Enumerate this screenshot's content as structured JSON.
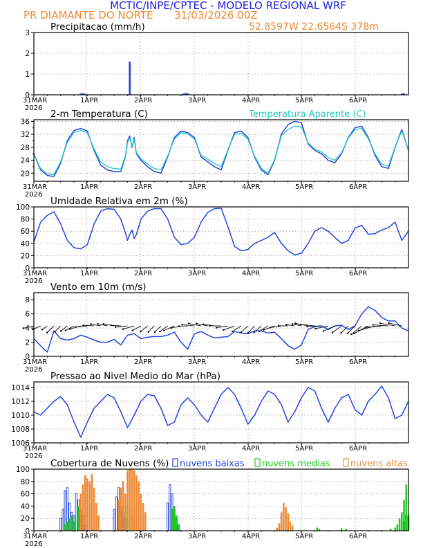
{
  "header": {
    "title": "MCTIC/INPE/CPTEC - MODELO REGIONAL WRF",
    "station": "PR DIAMANTE DO NORTE",
    "run": "31/03/2026 00Z",
    "coords": "52.8597W 22.6564S 378m"
  },
  "colors": {
    "title": "#2222dd",
    "station": "#ee8833",
    "line": "#2244dd",
    "apparent": "#22c8c0",
    "green": "#22cc22",
    "orange": "#ee8833",
    "grid": "#999999"
  },
  "x_axis": {
    "first_label": "31MAR",
    "year": "2026",
    "ticks": [
      "1APR",
      "2APR",
      "3APR",
      "4APR",
      "5APR",
      "6APR"
    ],
    "hours_total": 168
  },
  "chart_data": [
    {
      "id": "precip",
      "type": "bar",
      "title": "Precipitacao (mm/h)",
      "ylim": [
        0,
        3
      ],
      "yticks": [
        "0",
        "1",
        "2",
        "3"
      ],
      "series": [
        {
          "name": "Precipitacao",
          "color": "#2244dd",
          "points": [
            [
              21,
              0.06
            ],
            [
              22,
              0.08
            ],
            [
              23,
              0.05
            ],
            [
              43,
              1.6
            ],
            [
              67,
              0.06
            ],
            [
              68,
              0.09
            ],
            [
              69,
              0.07
            ],
            [
              165,
              0.06
            ],
            [
              166,
              0.08
            ]
          ]
        }
      ]
    },
    {
      "id": "temp",
      "type": "line",
      "title": "2-m Temperatura (C)",
      "legend": "Temperatura Aparente (C)",
      "ylim": [
        17.5,
        36.5
      ],
      "yticks": [
        "20",
        "24",
        "28",
        "32",
        "36"
      ],
      "series": [
        {
          "name": "2-m Temperatura",
          "color": "#2244dd",
          "x": [
            0,
            3,
            6,
            9,
            12,
            15,
            18,
            21,
            24,
            27,
            30,
            33,
            36,
            39,
            41,
            42,
            43,
            44,
            45,
            46,
            48,
            51,
            54,
            57,
            60,
            63,
            66,
            69,
            72,
            75,
            78,
            81,
            84,
            87,
            90,
            93,
            96,
            99,
            102,
            105,
            108,
            111,
            114,
            117,
            120,
            123,
            126,
            129,
            132,
            135,
            138,
            141,
            144,
            147,
            150,
            153,
            156,
            159,
            162,
            165,
            168
          ],
          "y": [
            26,
            21,
            19.3,
            19,
            23,
            30,
            33.2,
            33.8,
            33,
            27,
            22.5,
            21,
            20.5,
            20.5,
            25,
            30,
            31.5,
            28,
            31,
            26,
            24,
            22,
            20.5,
            20,
            25,
            31,
            33,
            32.5,
            31,
            25,
            23.5,
            22,
            21,
            27,
            32.5,
            33,
            31,
            25,
            21,
            19.5,
            24,
            32,
            35,
            36,
            35.5,
            29,
            27,
            26,
            24,
            23.2,
            26,
            31,
            34,
            34.5,
            31,
            25.5,
            22,
            21.5,
            28,
            33.5,
            27
          ]
        },
        {
          "name": "Temperatura Aparente",
          "color": "#22c8c0",
          "x": [
            0,
            3,
            6,
            9,
            12,
            15,
            18,
            21,
            24,
            27,
            30,
            33,
            36,
            39,
            41,
            42,
            43,
            44,
            45,
            46,
            48,
            51,
            54,
            57,
            60,
            63,
            66,
            69,
            72,
            75,
            78,
            81,
            84,
            87,
            90,
            93,
            96,
            99,
            102,
            105,
            108,
            111,
            114,
            117,
            120,
            123,
            126,
            129,
            132,
            135,
            138,
            141,
            144,
            147,
            150,
            153,
            156,
            159,
            162,
            165,
            168
          ],
          "y": [
            25.8,
            21.5,
            19.8,
            19.6,
            23.5,
            29.5,
            32.6,
            33.2,
            32.5,
            27.5,
            23.5,
            22,
            21.4,
            21.3,
            25.2,
            29.5,
            31,
            28.2,
            30.5,
            26.3,
            24.5,
            22.8,
            21.5,
            21,
            25.3,
            30.5,
            32.5,
            32.2,
            30.5,
            25.5,
            24.3,
            23,
            22,
            27.2,
            32,
            32.3,
            30.5,
            25.3,
            21.5,
            20,
            24.3,
            31.5,
            33.5,
            34.5,
            34.3,
            29.3,
            27.4,
            26.6,
            24.8,
            24,
            26.3,
            30.8,
            33.4,
            33.8,
            30.6,
            26,
            22.8,
            22.2,
            28.2,
            33,
            27.3
          ]
        }
      ]
    },
    {
      "id": "rh",
      "type": "line",
      "title": "Umidade Relativa em 2m (%)",
      "ylim": [
        0,
        100
      ],
      "yticks": [
        "0",
        "20",
        "40",
        "60",
        "80",
        "100"
      ],
      "series": [
        {
          "name": "Umidade Relativa",
          "color": "#2244dd",
          "x": [
            0,
            3,
            6,
            9,
            12,
            15,
            18,
            21,
            24,
            27,
            30,
            33,
            36,
            39,
            41,
            42,
            43,
            44,
            45,
            46,
            48,
            51,
            54,
            57,
            60,
            63,
            66,
            69,
            72,
            75,
            78,
            81,
            84,
            87,
            90,
            93,
            96,
            99,
            102,
            105,
            108,
            111,
            114,
            117,
            120,
            123,
            126,
            129,
            132,
            135,
            138,
            141,
            144,
            147,
            150,
            153,
            156,
            159,
            162,
            165,
            168
          ],
          "y": [
            42,
            75,
            86,
            92,
            72,
            45,
            33,
            31,
            38,
            72,
            93,
            97,
            96,
            80,
            58,
            45,
            55,
            62,
            48,
            55,
            80,
            93,
            97,
            97,
            80,
            50,
            38,
            40,
            50,
            75,
            91,
            97,
            98,
            68,
            35,
            28,
            30,
            40,
            45,
            50,
            58,
            40,
            28,
            21,
            24,
            40,
            60,
            66,
            60,
            50,
            40,
            45,
            65,
            70,
            55,
            56,
            62,
            66,
            75,
            45,
            60
          ]
        }
      ]
    },
    {
      "id": "wind",
      "type": "line",
      "title": "Vento em 10m (m/s)",
      "ylim": [
        0,
        9
      ],
      "yticks": [
        "0",
        "2",
        "4",
        "6",
        "8"
      ],
      "barb_level": 4.3,
      "series": [
        {
          "name": "Vento",
          "color": "#2244dd",
          "x": [
            0,
            3,
            6,
            9,
            12,
            15,
            18,
            21,
            24,
            27,
            30,
            33,
            36,
            39,
            42,
            45,
            48,
            51,
            54,
            57,
            60,
            63,
            66,
            69,
            72,
            75,
            78,
            81,
            84,
            87,
            90,
            93,
            96,
            99,
            102,
            105,
            108,
            111,
            114,
            117,
            120,
            123,
            126,
            129,
            132,
            135,
            138,
            141,
            144,
            147,
            150,
            153,
            156,
            159,
            162,
            165,
            168
          ],
          "y": [
            2.5,
            1.5,
            0.6,
            3.6,
            2.5,
            2.3,
            2.5,
            3,
            2.7,
            2.3,
            2,
            2,
            2.4,
            1.6,
            3,
            3.2,
            2.5,
            2.7,
            2.8,
            2.8,
            3,
            3.4,
            2,
            1,
            3.2,
            3.5,
            3,
            2.6,
            2.7,
            2.8,
            3.5,
            3.3,
            3.2,
            3.6,
            3.6,
            3.3,
            3.4,
            2.5,
            1.5,
            1,
            1.6,
            3.8,
            4.2,
            4.3,
            3.8,
            4.3,
            4.4,
            3.8,
            4.3,
            6,
            7,
            6.5,
            5.5,
            5,
            5,
            4,
            3.6
          ]
        }
      ]
    },
    {
      "id": "pressure",
      "type": "line",
      "title": "Pressao ao Nivel Medio do Mar (hPa)",
      "ylim": [
        1006,
        1014.8
      ],
      "yticks": [
        "1006",
        "1008",
        "1010",
        "1012",
        "1014"
      ],
      "series": [
        {
          "name": "Pressao",
          "color": "#2244dd",
          "x": [
            0,
            3,
            6,
            9,
            12,
            15,
            18,
            21,
            24,
            27,
            30,
            33,
            36,
            39,
            42,
            45,
            48,
            51,
            54,
            57,
            60,
            63,
            66,
            69,
            72,
            75,
            78,
            81,
            84,
            87,
            90,
            93,
            96,
            99,
            102,
            105,
            108,
            111,
            114,
            117,
            120,
            123,
            126,
            129,
            132,
            135,
            138,
            141,
            144,
            147,
            150,
            153,
            156,
            159,
            162,
            165,
            168
          ],
          "y": [
            1010.5,
            1010,
            1011,
            1012,
            1012.7,
            1011.5,
            1009,
            1006.8,
            1009,
            1011,
            1012,
            1013,
            1012.5,
            1010.5,
            1008.2,
            1010,
            1012,
            1013,
            1012.8,
            1011,
            1008.5,
            1009,
            1011.5,
            1012.5,
            1011.5,
            1010,
            1009,
            1011,
            1013,
            1014,
            1013,
            1011,
            1008.7,
            1010,
            1012,
            1013.5,
            1013,
            1011.5,
            1009,
            1010.5,
            1012.5,
            1014,
            1013.5,
            1011,
            1009,
            1011,
            1012.5,
            1013,
            1010.8,
            1010,
            1012,
            1013,
            1014.2,
            1012.5,
            1009.5,
            1010,
            1012
          ]
        }
      ]
    },
    {
      "id": "clouds",
      "type": "bar",
      "title": "Cobertura de Nuvens (%)",
      "ylim": [
        0,
        100
      ],
      "yticks": [
        "0",
        "20",
        "40",
        "60",
        "80",
        "100"
      ],
      "legend": [
        "nuvens baixas",
        "nuvens medias",
        "nuvens altas"
      ],
      "series": [
        {
          "name": "nuvens baixas",
          "color": "#2244dd",
          "style": "outline",
          "points": [
            [
              12,
              20
            ],
            [
              13,
              35
            ],
            [
              14,
              65
            ],
            [
              15,
              70
            ],
            [
              16,
              45
            ],
            [
              17,
              30
            ],
            [
              18,
              25
            ],
            [
              19,
              60
            ],
            [
              20,
              50
            ],
            [
              21,
              35
            ],
            [
              22,
              25
            ],
            [
              23,
              10
            ],
            [
              36,
              35
            ],
            [
              37,
              55
            ],
            [
              38,
              70
            ],
            [
              39,
              40
            ],
            [
              40,
              30
            ],
            [
              41,
              20
            ],
            [
              60,
              45
            ],
            [
              61,
              75
            ],
            [
              62,
              60
            ],
            [
              63,
              35
            ],
            [
              64,
              20
            ],
            [
              65,
              10
            ],
            [
              166,
              15
            ],
            [
              167,
              25
            ]
          ]
        },
        {
          "name": "nuvens medias",
          "color": "#22cc22",
          "style": "fill",
          "points": [
            [
              14,
              10
            ],
            [
              15,
              15
            ],
            [
              16,
              20
            ],
            [
              17,
              25
            ],
            [
              18,
              15
            ],
            [
              20,
              40
            ],
            [
              21,
              30
            ],
            [
              22,
              20
            ],
            [
              39,
              10
            ],
            [
              40,
              30
            ],
            [
              41,
              45
            ],
            [
              42,
              40
            ],
            [
              43,
              30
            ],
            [
              44,
              25
            ],
            [
              45,
              35
            ],
            [
              46,
              20
            ],
            [
              62,
              35
            ],
            [
              63,
              40
            ],
            [
              64,
              25
            ],
            [
              65,
              10
            ],
            [
              127,
              5
            ],
            [
              128,
              3
            ],
            [
              138,
              4
            ],
            [
              140,
              3
            ],
            [
              160,
              3
            ],
            [
              162,
              5
            ],
            [
              163,
              10
            ],
            [
              164,
              20
            ],
            [
              165,
              30
            ],
            [
              166,
              50
            ],
            [
              167,
              75
            ],
            [
              168,
              25
            ]
          ]
        },
        {
          "name": "nuvens altas",
          "color": "#ee8833",
          "style": "fill",
          "points": [
            [
              21,
              60
            ],
            [
              22,
              75
            ],
            [
              23,
              90
            ],
            [
              24,
              85
            ],
            [
              25,
              80
            ],
            [
              26,
              92
            ],
            [
              27,
              70
            ],
            [
              28,
              45
            ],
            [
              29,
              25
            ],
            [
              38,
              50
            ],
            [
              39,
              70
            ],
            [
              40,
              80
            ],
            [
              41,
              60
            ],
            [
              42,
              98
            ],
            [
              43,
              100
            ],
            [
              44,
              100
            ],
            [
              45,
              98
            ],
            [
              46,
              90
            ],
            [
              47,
              80
            ],
            [
              48,
              60
            ],
            [
              49,
              45
            ],
            [
              50,
              30
            ],
            [
              109,
              5
            ],
            [
              110,
              12
            ],
            [
              111,
              30
            ],
            [
              112,
              45
            ],
            [
              113,
              38
            ],
            [
              114,
              28
            ],
            [
              115,
              15
            ],
            [
              116,
              8
            ]
          ]
        }
      ]
    }
  ]
}
